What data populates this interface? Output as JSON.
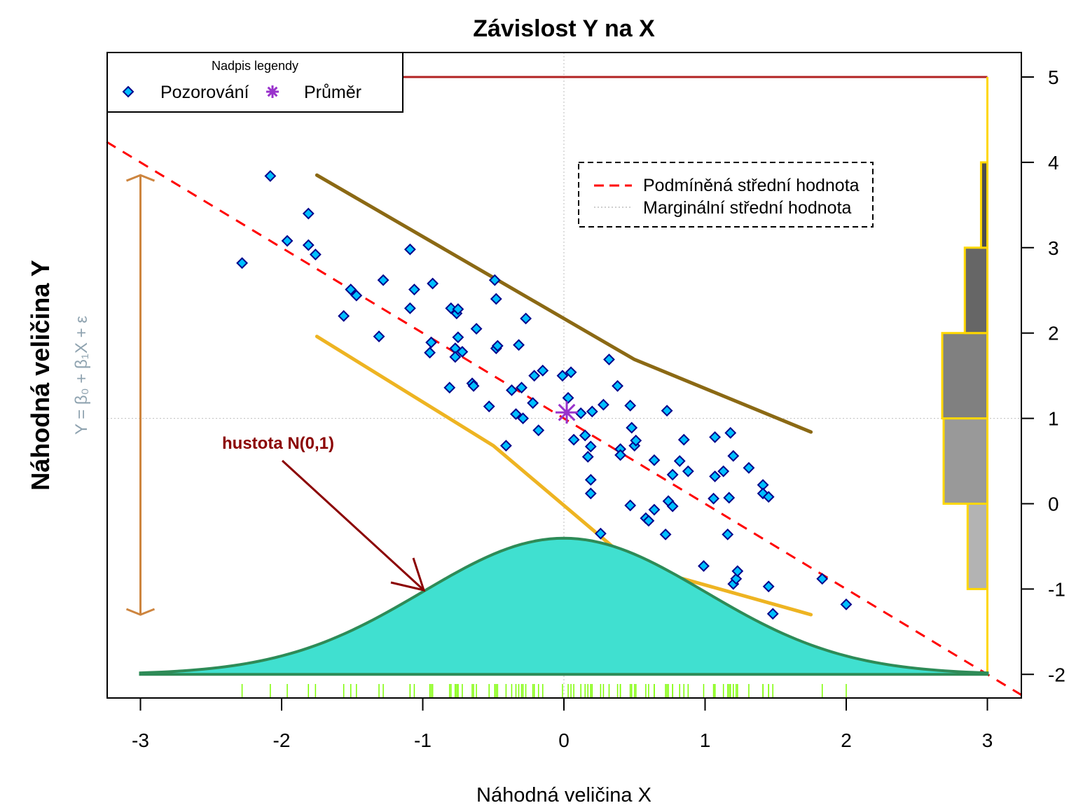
{
  "chart_data": {
    "type": "scatter",
    "title": "Závislost Y na X",
    "xlabel": "Náhodná veličina X",
    "ylabel": "Náhodná veličina Y",
    "formula": "Y = β₀ + β₁X + ε",
    "xlim": [
      -3.25,
      3.25
    ],
    "ylim": [
      -2.25,
      5.3
    ],
    "x_ticks": [
      "-3",
      "-2",
      "-1",
      "0",
      "1",
      "2",
      "3"
    ],
    "y_ticks": [
      "-2",
      "-1",
      "0",
      "1",
      "2",
      "3",
      "4",
      "5"
    ],
    "y_axis_side": "right",
    "grid": "dotted lines at x=0 and y=1",
    "colors": {
      "points_fill": "#00BFFF",
      "points_border": "#00008B",
      "mean": "#9932CC",
      "regression": "#FF0000",
      "marginal": "#BEBEBE",
      "upper_line": "#8B6914",
      "lower_line": "#EEB422",
      "density_fill": "#40E0D0",
      "density_border": "#2E8B57",
      "arrow": "#8B0000",
      "range_arrow": "#CD853F",
      "rug": "#7CFC00",
      "hist_border": "#FFD700",
      "top_line": "#B22222"
    },
    "points": {
      "x": [
        -2.28,
        -2.08,
        -1.96,
        -1.81,
        -1.81,
        -1.76,
        -1.56,
        -1.51,
        -1.47,
        -1.31,
        -1.28,
        -1.09,
        -1.09,
        -1.06,
        -0.95,
        -0.94,
        -0.93,
        -0.81,
        -0.8,
        -0.77,
        -0.77,
        -0.76,
        -0.75,
        -0.75,
        -0.72,
        -0.65,
        -0.64,
        -0.62,
        -0.53,
        -0.49,
        -0.48,
        -0.48,
        -0.47,
        -0.41,
        -0.37,
        -0.34,
        -0.32,
        -0.3,
        -0.29,
        -0.27,
        -0.22,
        -0.21,
        -0.18,
        -0.15,
        -0.01,
        0.03,
        0.05,
        0.07,
        0.12,
        0.15,
        0.17,
        0.19,
        0.2,
        0.19,
        0.19,
        0.26,
        0.28,
        0.32,
        0.38,
        0.4,
        0.4,
        0.47,
        0.47,
        0.48,
        0.5,
        0.51,
        0.58,
        0.6,
        0.64,
        0.64,
        0.72,
        0.73,
        0.74,
        0.77,
        0.77,
        0.82,
        0.85,
        0.88,
        0.99,
        1.06,
        1.07,
        1.07,
        1.13,
        1.16,
        1.17,
        1.18,
        1.2,
        1.2,
        1.22,
        1.23,
        1.31,
        1.41,
        1.41,
        1.45,
        1.45,
        1.48,
        1.83,
        2.0
      ],
      "y": [
        2.82,
        3.84,
        3.08,
        3.03,
        3.4,
        2.92,
        2.2,
        2.51,
        2.44,
        1.96,
        2.62,
        2.98,
        2.29,
        2.51,
        1.77,
        1.89,
        2.58,
        1.36,
        2.29,
        1.82,
        1.72,
        2.23,
        1.95,
        2.28,
        1.78,
        1.41,
        1.38,
        2.05,
        1.14,
        2.62,
        2.4,
        1.82,
        1.85,
        0.68,
        1.33,
        1.05,
        1.86,
        1.36,
        1.0,
        2.17,
        1.18,
        1.5,
        0.86,
        1.56,
        1.5,
        1.24,
        1.54,
        0.75,
        1.06,
        0.8,
        0.55,
        0.67,
        1.08,
        0.28,
        0.12,
        -0.35,
        1.16,
        1.69,
        1.38,
        0.64,
        0.57,
        1.15,
        -0.02,
        0.89,
        0.68,
        0.74,
        -0.17,
        -0.2,
        0.51,
        -0.07,
        -0.36,
        1.09,
        0.03,
        -0.03,
        0.34,
        0.5,
        0.75,
        0.38,
        -0.73,
        0.06,
        0.32,
        0.78,
        0.38,
        -0.36,
        0.07,
        0.83,
        0.56,
        -0.94,
        -0.88,
        -0.79,
        0.42,
        0.22,
        0.12,
        0.08,
        -0.97,
        -1.29,
        -0.88,
        -1.18
      ]
    },
    "mean": {
      "x": 0.02,
      "y": 1.07
    },
    "regression_line": {
      "intercept": 1.0,
      "slope": -1.0
    },
    "upper_line": {
      "x": [
        -1.75,
        0.5,
        1.75
      ],
      "y": [
        3.85,
        1.69,
        0.84
      ]
    },
    "lower_line": {
      "x": [
        -1.75,
        -0.5,
        0.5,
        1.75
      ],
      "y": [
        1.96,
        0.68,
        -0.72,
        -1.3
      ]
    },
    "density": {
      "distribution": "N(0,1)",
      "baseline": -2,
      "scale": 4,
      "x_range": [
        -3,
        3
      ]
    },
    "density_label": "hustota N(0,1)",
    "range_arrow": {
      "x": -3,
      "y_from": -1.3,
      "y_to": 3.85
    },
    "top_line": {
      "y": 5,
      "x_to": 3
    },
    "histogram": {
      "bins": [
        [
          -1,
          0
        ],
        [
          0,
          1
        ],
        [
          1,
          2
        ],
        [
          2,
          3
        ],
        [
          3,
          4
        ]
      ],
      "lengths": [
        0.14,
        0.31,
        0.32,
        0.16,
        0.045
      ],
      "fills": [
        "#B3B3B3",
        "#999999",
        "#808080",
        "#666666",
        "#4D4D4D"
      ]
    },
    "legend_points": {
      "title": "Nadpis legendy",
      "items": [
        {
          "label": "Pozorování",
          "symbol": "diamond"
        },
        {
          "label": "Průměr",
          "symbol": "asterisk"
        }
      ]
    },
    "legend_lines": {
      "items": [
        {
          "label": "Podmíněná střední hodnota",
          "style": "dashed"
        },
        {
          "label": "Marginální střední hodnota",
          "style": "dotted"
        }
      ]
    }
  }
}
